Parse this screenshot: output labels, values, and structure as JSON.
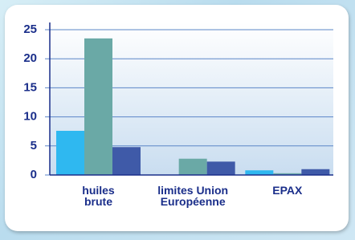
{
  "chart_data": {
    "type": "bar",
    "categories": [
      "huiles brute",
      "limites Union Européenne",
      "EPAX"
    ],
    "series": [
      {
        "color": "#2fb8f0",
        "values": [
          7.6,
          null,
          0.8
        ]
      },
      {
        "color": "#6aa9a6",
        "values": [
          23.5,
          2.8,
          0.3
        ]
      },
      {
        "color": "#3f5aa8",
        "values": [
          4.8,
          2.3,
          1.0
        ]
      }
    ],
    "ylim": [
      0,
      25
    ],
    "yticks": [
      0,
      5,
      10,
      15,
      20,
      25
    ],
    "grid": true
  }
}
